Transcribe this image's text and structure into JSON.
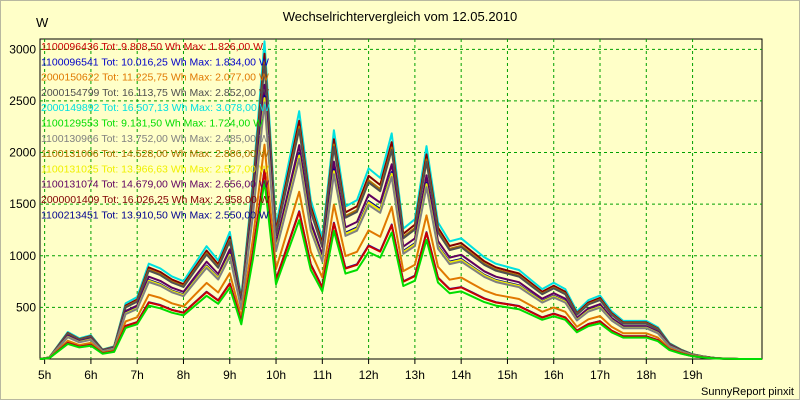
{
  "chart_data": {
    "type": "line",
    "title": "Wechselrichtervergleich vom 12.05.2010",
    "ylabel": "W",
    "footer": "SunnyReport pinxit",
    "ylim": [
      0,
      3100
    ],
    "yticks": [
      500,
      1000,
      1500,
      2000,
      2500,
      3000
    ],
    "x_range": [
      4.9,
      20.5
    ],
    "xticks": [
      {
        "value": 5,
        "label": "5h"
      },
      {
        "value": 6,
        "label": "6h"
      },
      {
        "value": 7,
        "label": "7h"
      },
      {
        "value": 8,
        "label": "8h"
      },
      {
        "value": 9,
        "label": "9h"
      },
      {
        "value": 10,
        "label": "10h"
      },
      {
        "value": 11,
        "label": "11h"
      },
      {
        "value": 12,
        "label": "12h"
      },
      {
        "value": 13,
        "label": "13h"
      },
      {
        "value": 14,
        "label": "14h"
      },
      {
        "value": 15,
        "label": "15h"
      },
      {
        "value": 16,
        "label": "16h"
      },
      {
        "value": 17,
        "label": "17h"
      },
      {
        "value": 18,
        "label": "18h"
      },
      {
        "value": 19,
        "label": "19h"
      }
    ],
    "grid": true,
    "x": [
      4.9,
      5.1,
      5.5,
      5.75,
      6.0,
      6.25,
      6.5,
      6.75,
      7.0,
      7.25,
      7.5,
      7.75,
      8.0,
      8.25,
      8.5,
      8.75,
      9.0,
      9.25,
      9.5,
      9.75,
      10.0,
      10.25,
      10.5,
      10.75,
      11.0,
      11.25,
      11.5,
      11.75,
      12.0,
      12.25,
      12.5,
      12.75,
      13.0,
      13.25,
      13.5,
      13.75,
      14.0,
      14.25,
      14.5,
      14.75,
      15.0,
      15.25,
      15.5,
      15.75,
      16.0,
      16.25,
      16.5,
      16.75,
      17.0,
      17.25,
      17.5,
      17.75,
      18.0,
      18.25,
      18.5,
      18.75,
      19.0,
      19.25,
      19.5,
      19.75,
      20.0,
      20.5
    ],
    "profile": [
      0,
      0.005,
      0.085,
      0.065,
      0.075,
      0.03,
      0.04,
      0.175,
      0.195,
      0.3,
      0.285,
      0.26,
      0.245,
      0.3,
      0.355,
      0.31,
      0.4,
      0.195,
      0.56,
      1.0,
      0.42,
      0.6,
      0.78,
      0.5,
      0.38,
      0.72,
      0.48,
      0.5,
      0.6,
      0.57,
      0.71,
      0.41,
      0.44,
      0.67,
      0.43,
      0.37,
      0.38,
      0.35,
      0.32,
      0.3,
      0.29,
      0.28,
      0.25,
      0.22,
      0.24,
      0.22,
      0.15,
      0.185,
      0.2,
      0.15,
      0.12,
      0.12,
      0.12,
      0.1,
      0.05,
      0.03,
      0.015,
      0.008,
      0.003,
      0.001,
      0,
      0
    ],
    "series": [
      {
        "name": "1100096436",
        "label": "1100096436 Tot: 9.808,50 Wh Max: 1.826,00 W",
        "max": 1826,
        "color": "#c80000"
      },
      {
        "name": "1100096541",
        "label": "1100096541 Tot: 10.016,25 Wh Max: 1.834,00 W",
        "max": 1834,
        "color": "#0000c8"
      },
      {
        "name": "2000150622",
        "label": "2000150622 Tot: 11.225,75 Wh Max: 2.077,00 W",
        "max": 2077,
        "color": "#e07800"
      },
      {
        "name": "2000154799",
        "label": "2000154799 Tot: 16.113,75 Wh Max: 2.852,00 W",
        "max": 2852,
        "color": "#505050"
      },
      {
        "name": "2000149892",
        "label": "2000149892 Tot: 16.507,13 Wh Max: 3.078,00 W",
        "max": 3078,
        "color": "#00e0e0"
      },
      {
        "name": "1100129553",
        "label": "1100129553 Tot: 9.131,50 Wh Max: 1.724,00 W",
        "max": 1724,
        "color": "#00dd00"
      },
      {
        "name": "1100130966",
        "label": "1100130966 Tot: 13.752,00 Wh Max: 2.485,00 W",
        "max": 2485,
        "color": "#808080"
      },
      {
        "name": "1100131006",
        "label": "1100131006 Tot: 14.528,00 Wh Max: 2.886,00 W",
        "max": 2886,
        "color": "#b07000"
      },
      {
        "name": "1100131025",
        "label": "1100131025 Tot: 13.966,63 Wh Max: 2.527,00 W",
        "max": 2527,
        "color": "#f0f000"
      },
      {
        "name": "1100131074",
        "label": "1100131074 Tot: 14.679,00 Wh Max: 2.656,00 W",
        "max": 2656,
        "color": "#600060"
      },
      {
        "name": "2000001409",
        "label": "2000001409 Tot: 16.026,25 Wh Max: 2.958,00 W",
        "max": 2958,
        "color": "#800000"
      },
      {
        "name": "1100213451",
        "label": "1100213451 Tot: 13.910,50 Wh Max: 2.550,00 W",
        "max": 2550,
        "color": "#000090"
      }
    ]
  }
}
